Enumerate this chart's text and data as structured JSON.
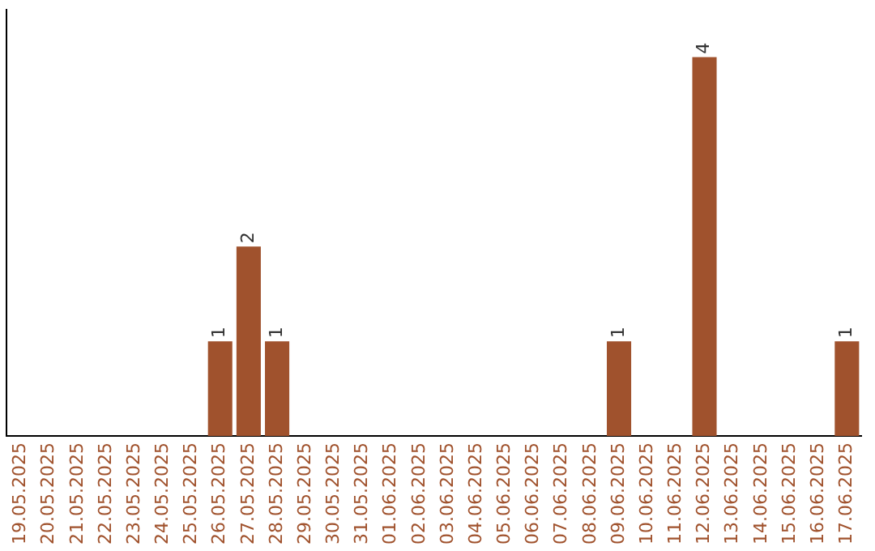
{
  "chart_data": {
    "type": "bar",
    "categories": [
      "19.05.2025",
      "20.05.2025",
      "21.05.2025",
      "22.05.2025",
      "23.05.2025",
      "24.05.2025",
      "25.05.2025",
      "26.05.2025",
      "27.05.2025",
      "28.05.2025",
      "29.05.2025",
      "30.05.2025",
      "31.05.2025",
      "01.06.2025",
      "02.06.2025",
      "03.06.2025",
      "04.06.2025",
      "05.06.2025",
      "06.06.2025",
      "07.06.2025",
      "08.06.2025",
      "09.06.2025",
      "10.06.2025",
      "11.06.2025",
      "12.06.2025",
      "13.06.2025",
      "14.06.2025",
      "15.06.2025",
      "16.06.2025",
      "17.06.2025"
    ],
    "values": [
      0,
      0,
      0,
      0,
      0,
      0,
      0,
      1,
      2,
      1,
      0,
      0,
      0,
      0,
      0,
      0,
      0,
      0,
      0,
      0,
      0,
      1,
      0,
      0,
      4,
      0,
      0,
      0,
      0,
      1
    ],
    "color": "#a0522d",
    "value_labels": [
      null,
      null,
      null,
      null,
      null,
      null,
      null,
      "1",
      "2",
      "1",
      null,
      null,
      null,
      null,
      null,
      null,
      null,
      null,
      null,
      null,
      null,
      "1",
      null,
      null,
      "4",
      null,
      null,
      null,
      null,
      "1"
    ],
    "grid": false,
    "legend": false,
    "tick_labels": "x"
  }
}
